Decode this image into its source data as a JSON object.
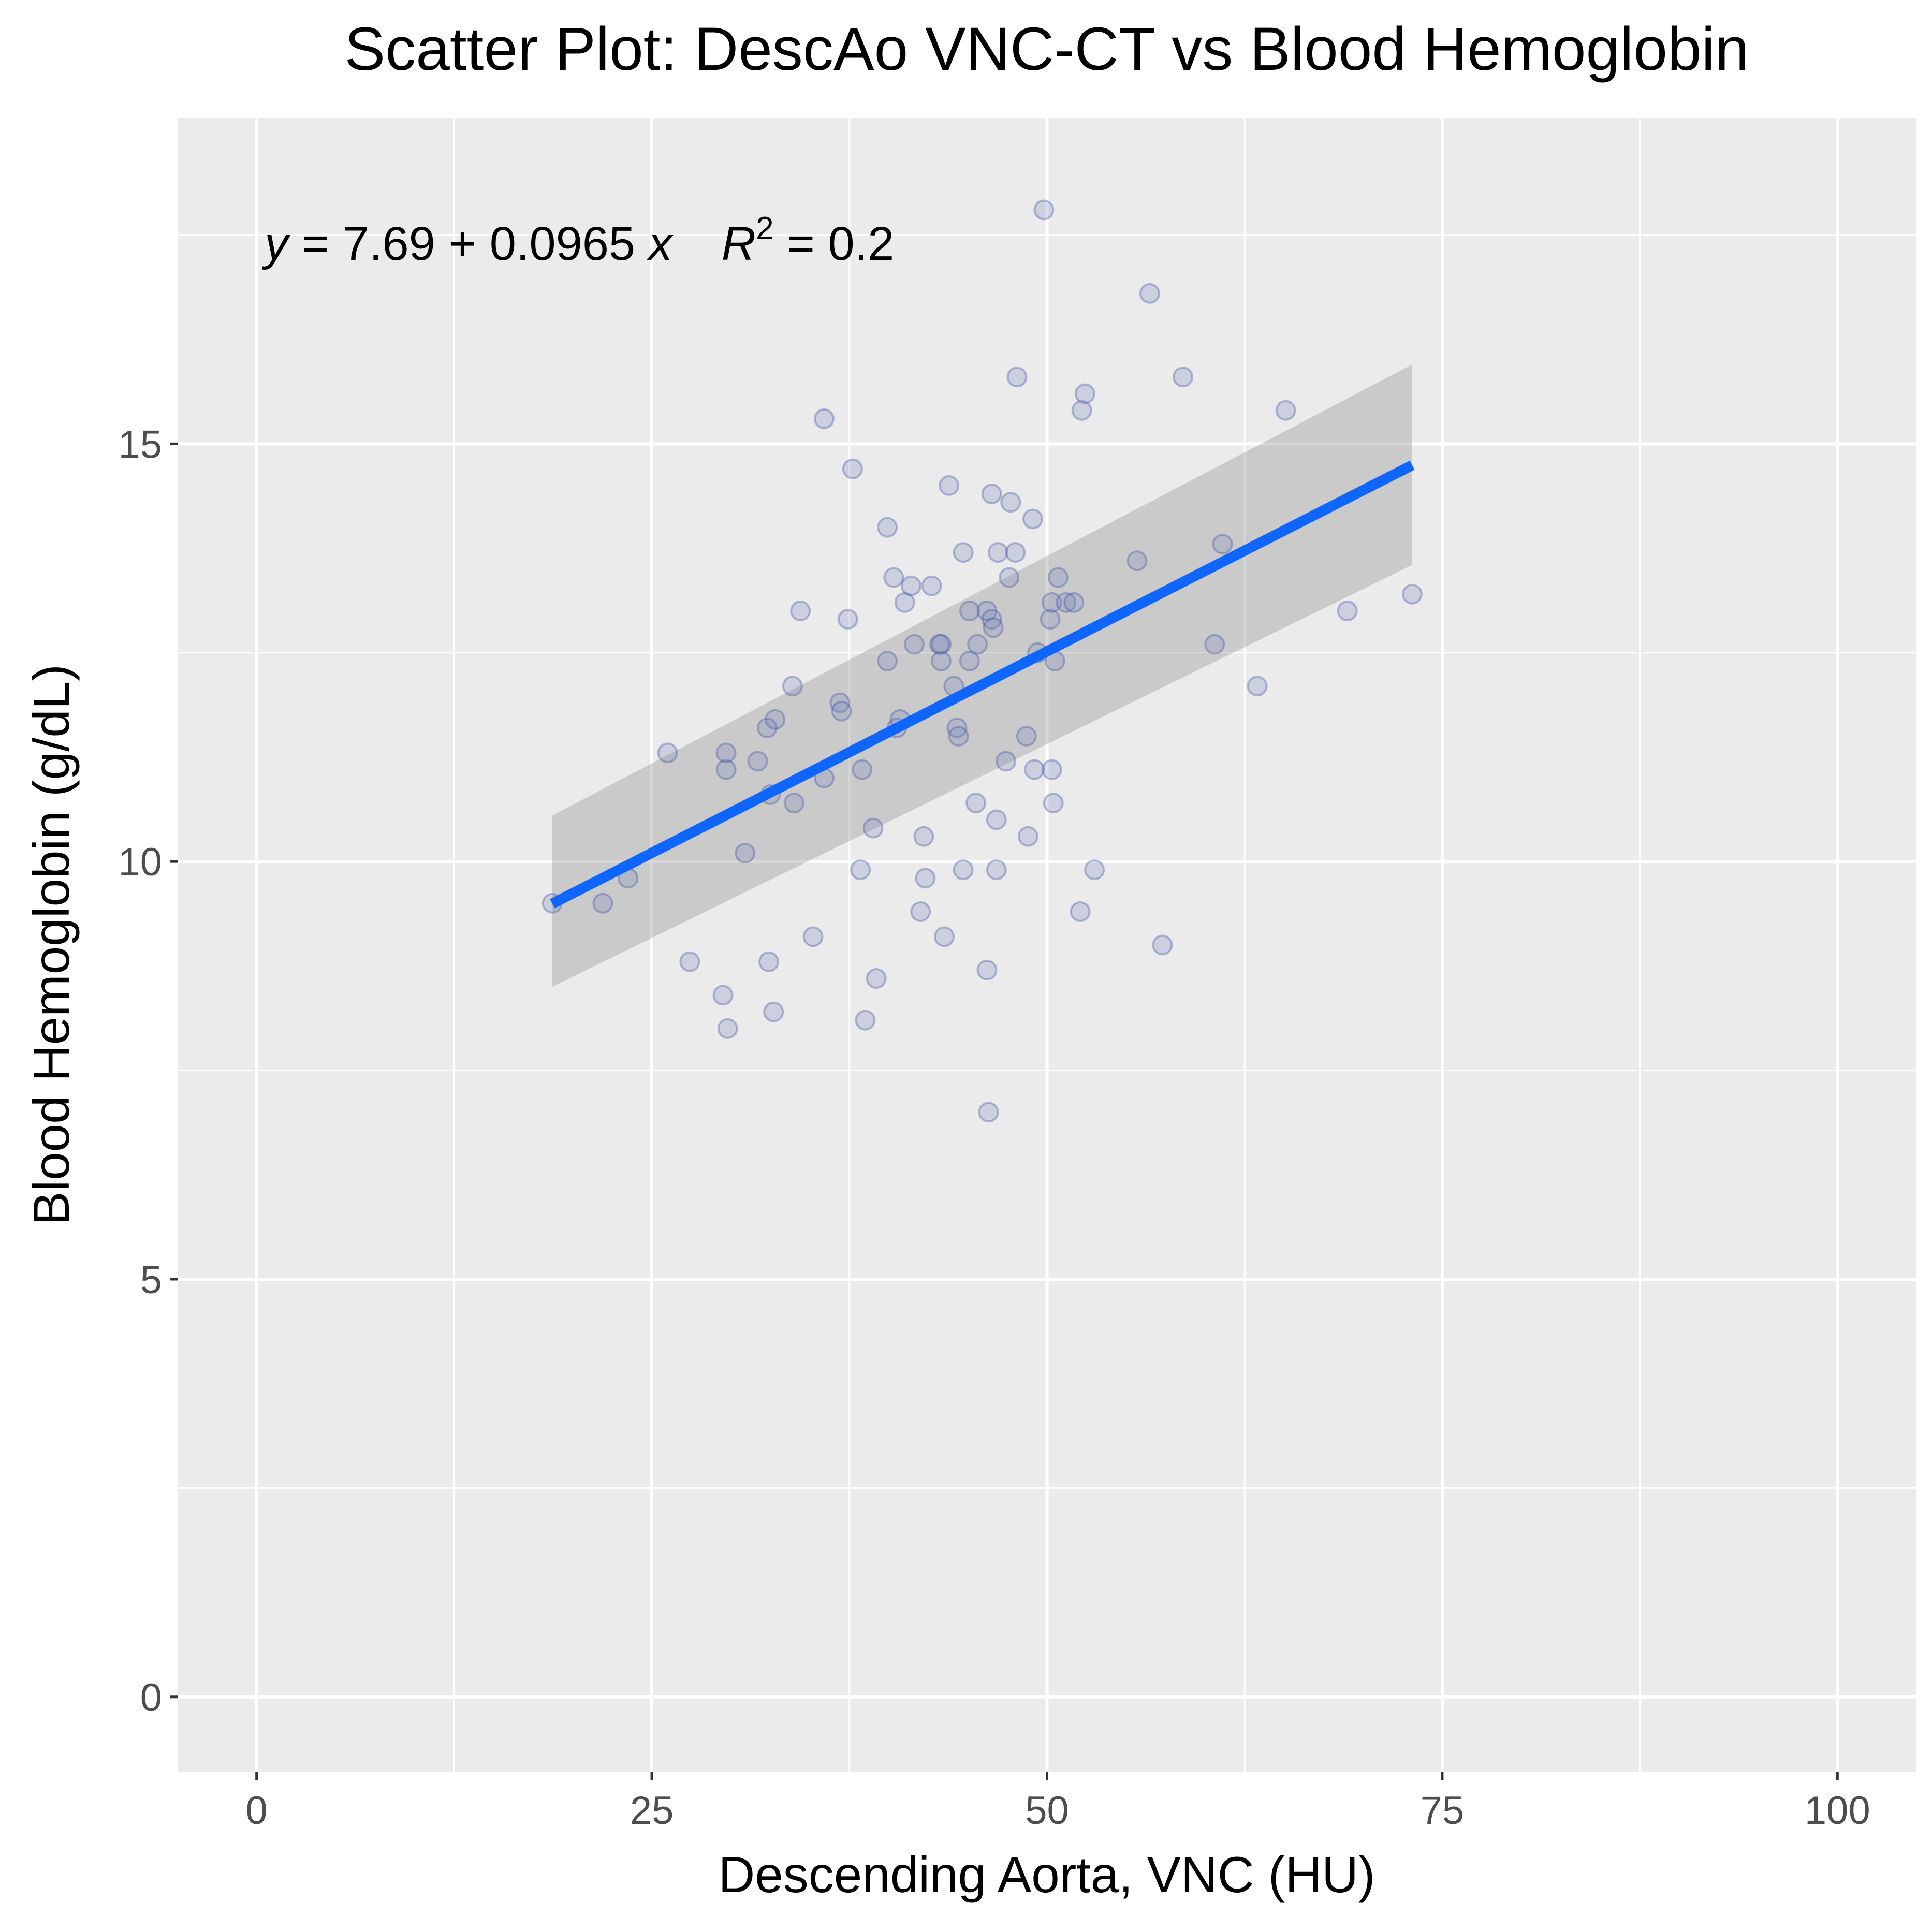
{
  "chart_data": {
    "type": "scatter",
    "title": "Scatter Plot: DescAo VNC-CT vs Blood Hemoglobin",
    "xlabel": "Descending Aorta, VNC (HU)",
    "ylabel": "Blood Hemoglobin (g/dL)",
    "xlim": [
      -5,
      105
    ],
    "ylim": [
      -0.9,
      18.9
    ],
    "x_ticks": [
      0,
      25,
      50,
      75,
      100
    ],
    "y_ticks": [
      0,
      5,
      10,
      15
    ],
    "x_tick_labels": [
      "0",
      "25",
      "50",
      "75",
      "100"
    ],
    "y_tick_labels": [
      "0",
      "5",
      "10",
      "15"
    ],
    "grid": true,
    "annotation": {
      "y_var": "y",
      "eq_rest": " = 7.69 + 0.0965 ",
      "x_var": "x",
      "r_var": "R",
      "r_sup": "2",
      "r_rest": " = 0.2",
      "anchor_x": 0.5,
      "anchor_y": 17.4
    },
    "fit": {
      "intercept": 7.69,
      "slope": 0.0965,
      "x_range": [
        18.7,
        73.1
      ],
      "ci_lower": [
        8.5,
        13.55
      ],
      "ci_upper": [
        10.55,
        15.95
      ],
      "line_color": "#0f66ff"
    },
    "point_color": "#7b8abf",
    "points": [
      {
        "x": 18.7,
        "y": 9.5
      },
      {
        "x": 21.9,
        "y": 9.5
      },
      {
        "x": 23.5,
        "y": 9.8
      },
      {
        "x": 26.0,
        "y": 11.3
      },
      {
        "x": 27.4,
        "y": 8.8
      },
      {
        "x": 29.5,
        "y": 8.4
      },
      {
        "x": 29.7,
        "y": 11.3
      },
      {
        "x": 29.7,
        "y": 11.1
      },
      {
        "x": 29.8,
        "y": 8.0
      },
      {
        "x": 30.9,
        "y": 10.1
      },
      {
        "x": 31.7,
        "y": 11.2
      },
      {
        "x": 32.3,
        "y": 11.6
      },
      {
        "x": 32.4,
        "y": 8.8
      },
      {
        "x": 32.5,
        "y": 10.8
      },
      {
        "x": 32.7,
        "y": 8.2
      },
      {
        "x": 32.8,
        "y": 11.7
      },
      {
        "x": 33.9,
        "y": 12.1
      },
      {
        "x": 34.0,
        "y": 10.7
      },
      {
        "x": 34.4,
        "y": 13.0
      },
      {
        "x": 35.2,
        "y": 9.1
      },
      {
        "x": 35.9,
        "y": 15.3
      },
      {
        "x": 35.9,
        "y": 11.0
      },
      {
        "x": 36.9,
        "y": 11.9
      },
      {
        "x": 37.0,
        "y": 11.8
      },
      {
        "x": 37.4,
        "y": 12.9
      },
      {
        "x": 37.7,
        "y": 14.7
      },
      {
        "x": 38.2,
        "y": 9.9
      },
      {
        "x": 38.3,
        "y": 11.1
      },
      {
        "x": 38.5,
        "y": 8.1
      },
      {
        "x": 39.0,
        "y": 10.4
      },
      {
        "x": 39.2,
        "y": 8.6
      },
      {
        "x": 39.9,
        "y": 14.0
      },
      {
        "x": 39.9,
        "y": 12.4
      },
      {
        "x": 40.3,
        "y": 13.4
      },
      {
        "x": 40.5,
        "y": 11.6
      },
      {
        "x": 40.7,
        "y": 11.7
      },
      {
        "x": 41.0,
        "y": 13.1
      },
      {
        "x": 41.4,
        "y": 13.3
      },
      {
        "x": 41.6,
        "y": 12.6
      },
      {
        "x": 42.0,
        "y": 9.4
      },
      {
        "x": 42.2,
        "y": 10.3
      },
      {
        "x": 42.3,
        "y": 9.8
      },
      {
        "x": 42.7,
        "y": 13.3
      },
      {
        "x": 43.2,
        "y": 12.6
      },
      {
        "x": 43.3,
        "y": 12.4
      },
      {
        "x": 43.3,
        "y": 12.6
      },
      {
        "x": 43.5,
        "y": 9.1
      },
      {
        "x": 43.8,
        "y": 14.5
      },
      {
        "x": 44.1,
        "y": 12.1
      },
      {
        "x": 44.3,
        "y": 11.6
      },
      {
        "x": 44.4,
        "y": 11.5
      },
      {
        "x": 44.7,
        "y": 13.7
      },
      {
        "x": 44.7,
        "y": 9.9
      },
      {
        "x": 45.1,
        "y": 13.0
      },
      {
        "x": 45.1,
        "y": 12.4
      },
      {
        "x": 45.5,
        "y": 10.7
      },
      {
        "x": 45.6,
        "y": 12.6
      },
      {
        "x": 46.2,
        "y": 13.0
      },
      {
        "x": 46.2,
        "y": 8.7
      },
      {
        "x": 46.3,
        "y": 7.0
      },
      {
        "x": 46.5,
        "y": 12.9
      },
      {
        "x": 46.5,
        "y": 14.4
      },
      {
        "x": 46.6,
        "y": 12.8
      },
      {
        "x": 46.8,
        "y": 10.5
      },
      {
        "x": 46.8,
        "y": 9.9
      },
      {
        "x": 46.9,
        "y": 13.7
      },
      {
        "x": 47.4,
        "y": 11.2
      },
      {
        "x": 47.6,
        "y": 13.4
      },
      {
        "x": 47.7,
        "y": 14.3
      },
      {
        "x": 48.0,
        "y": 13.7
      },
      {
        "x": 48.1,
        "y": 15.8
      },
      {
        "x": 48.7,
        "y": 11.5
      },
      {
        "x": 48.8,
        "y": 10.3
      },
      {
        "x": 49.1,
        "y": 14.1
      },
      {
        "x": 49.2,
        "y": 11.1
      },
      {
        "x": 49.4,
        "y": 12.5
      },
      {
        "x": 49.8,
        "y": 17.8
      },
      {
        "x": 50.2,
        "y": 12.9
      },
      {
        "x": 50.3,
        "y": 13.1
      },
      {
        "x": 50.3,
        "y": 11.1
      },
      {
        "x": 50.4,
        "y": 10.7
      },
      {
        "x": 50.5,
        "y": 12.4
      },
      {
        "x": 50.7,
        "y": 13.4
      },
      {
        "x": 51.2,
        "y": 13.1
      },
      {
        "x": 51.7,
        "y": 13.1
      },
      {
        "x": 52.1,
        "y": 9.4
      },
      {
        "x": 52.2,
        "y": 15.4
      },
      {
        "x": 52.4,
        "y": 15.6
      },
      {
        "x": 53.0,
        "y": 9.9
      },
      {
        "x": 55.7,
        "y": 13.6
      },
      {
        "x": 56.5,
        "y": 16.8
      },
      {
        "x": 57.3,
        "y": 9.0
      },
      {
        "x": 58.6,
        "y": 15.8
      },
      {
        "x": 60.6,
        "y": 12.6
      },
      {
        "x": 61.1,
        "y": 13.8
      },
      {
        "x": 63.3,
        "y": 12.1
      },
      {
        "x": 65.1,
        "y": 15.4
      },
      {
        "x": 69.0,
        "y": 13.0
      },
      {
        "x": 73.1,
        "y": 13.2
      }
    ]
  }
}
